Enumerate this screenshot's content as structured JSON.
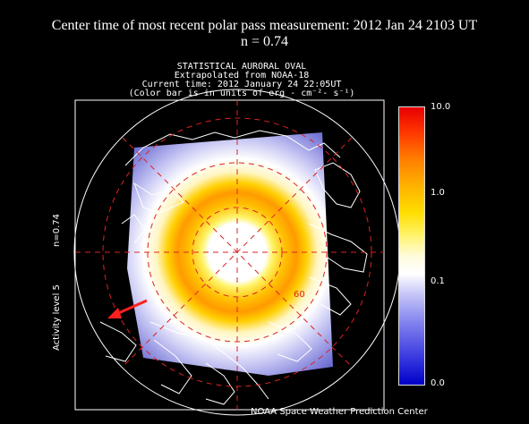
{
  "header": {
    "line1": "Center time of most recent polar pass measurement: 2012 Jan 24 2103 UT",
    "line2": "n = 0.74"
  },
  "plot": {
    "title": "STATISTICAL AURORAL OVAL",
    "line2": "Extrapolated from NOAA-18",
    "line3": "Current time: 2012 January 24 22:05UT",
    "line4": "(Color bar is in units of erg - cm⁻²- s⁻¹)",
    "latitude_label": "60",
    "left_label_n": "n=0.74",
    "left_label_activity": "Activity level 5"
  },
  "colorbar": {
    "labels": [
      "10.0",
      "1.0",
      "0.1",
      "0.0"
    ]
  },
  "footer": {
    "credit": "NOAA Space Weather Prediction Center"
  },
  "colors": {
    "background": "#000000",
    "grid": "#dd2222",
    "arrow": "#ff2020",
    "oval_high": "#ff8000",
    "oval_mid": "#ffe000",
    "oval_low": "#9090e0"
  },
  "icons": {
    "sun_direction": "red-arrow-icon"
  }
}
